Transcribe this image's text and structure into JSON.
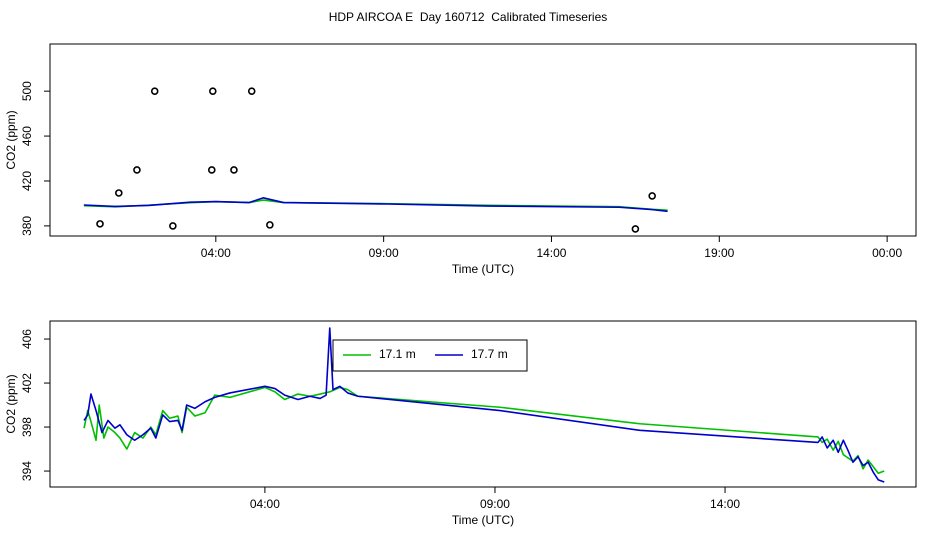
{
  "chart_data": [
    {
      "type": "line",
      "title": "HDP AIRCOA E  Day 160712  Calibrated Timeseries",
      "xlabel": "Time (UTC)",
      "ylabel": "CO2 (ppm)",
      "xlim": [
        -0.94,
        24.86
      ],
      "ylim": [
        371,
        542
      ],
      "xticks": [
        {
          "value": 4,
          "label": "04:00"
        },
        {
          "value": 9,
          "label": "09:00"
        },
        {
          "value": 14,
          "label": "14:00"
        },
        {
          "value": 19,
          "label": "19:00"
        },
        {
          "value": 24,
          "label": "00:00"
        }
      ],
      "yticks": [
        380,
        420,
        460,
        500
      ],
      "series": [
        {
          "style": "lines",
          "color": "#00c000",
          "x": [
            0.07,
            1.0,
            2.0,
            3.24,
            4.0,
            5.0,
            5.41,
            6.02,
            9.11,
            12.15,
            16.02,
            17.0,
            17.46
          ],
          "values": [
            398.0,
            397.0,
            398.5,
            400.7,
            401.6,
            400.8,
            403.0,
            400.8,
            399.8,
            398.3,
            397.1,
            394.8,
            394.0
          ]
        },
        {
          "style": "lines",
          "color": "#0000cc",
          "x": [
            0.07,
            1.0,
            2.0,
            3.24,
            4.0,
            5.0,
            5.41,
            6.02,
            9.11,
            12.15,
            16.02,
            17.0,
            17.46
          ],
          "values": [
            398.6,
            397.3,
            398.2,
            401.1,
            401.7,
            400.8,
            405.0,
            400.8,
            399.5,
            397.7,
            396.6,
            394.5,
            393.0
          ]
        },
        {
          "style": "points",
          "color": "#000000",
          "x": [
            0.55,
            1.11,
            1.65,
            2.18,
            2.72,
            3.88,
            3.91,
            4.54,
            5.07,
            5.61,
            16.5,
            17.0
          ],
          "values": [
            381.8,
            409.3,
            429.8,
            500,
            380,
            429.8,
            500,
            429.8,
            500,
            380.9,
            377.3,
            406.7
          ]
        }
      ]
    },
    {
      "type": "line",
      "xlabel": "Time (UTC)",
      "ylabel": "CO2 (ppm)",
      "xlim": [
        -0.67,
        18.15
      ],
      "ylim": [
        392.55,
        407.64
      ],
      "xticks": [
        {
          "value": 4,
          "label": "04:00"
        },
        {
          "value": 9,
          "label": "09:00"
        },
        {
          "value": 14,
          "label": "14:00"
        }
      ],
      "yticks": [
        394,
        398,
        402,
        406
      ],
      "legend": "top",
      "series": [
        {
          "name": "17.1 m",
          "style": "lines",
          "color": "#00c000",
          "x": [
            0.07,
            0.15,
            0.22,
            0.33,
            0.4,
            0.5,
            0.59,
            0.74,
            0.85,
            1.0,
            1.17,
            1.35,
            1.52,
            1.63,
            1.78,
            1.93,
            2.11,
            2.2,
            2.3,
            2.48,
            2.7,
            2.91,
            3.24,
            4.0,
            4.22,
            4.43,
            4.72,
            4.98,
            5.2,
            5.41,
            5.63,
            5.8,
            6.02,
            9.11,
            12.15,
            16.02,
            16.11,
            16.22,
            16.35,
            16.46,
            16.57,
            16.67,
            16.78,
            16.89,
            17.0,
            17.11,
            17.22,
            17.33,
            17.46
          ],
          "values": [
            397.9,
            399.5,
            398.5,
            396.8,
            400.0,
            397.0,
            398.0,
            397.5,
            397.0,
            396.0,
            397.5,
            397.0,
            398.0,
            397.3,
            399.5,
            398.8,
            399.0,
            397.5,
            399.8,
            399.0,
            399.3,
            400.9,
            400.7,
            401.6,
            401.2,
            400.5,
            401.0,
            400.8,
            401.0,
            401.2,
            401.6,
            401.4,
            400.8,
            399.8,
            398.3,
            397.1,
            396.6,
            396.9,
            395.9,
            396.7,
            395.5,
            395.2,
            394.9,
            395.4,
            394.2,
            395.0,
            394.4,
            393.8,
            394.0
          ]
        },
        {
          "name": "17.7 m",
          "style": "lines",
          "color": "#0000cc",
          "x": [
            0.07,
            0.15,
            0.22,
            0.33,
            0.46,
            0.59,
            0.74,
            0.85,
            1.0,
            1.17,
            1.35,
            1.52,
            1.63,
            1.78,
            1.93,
            2.11,
            2.2,
            2.3,
            2.48,
            2.7,
            2.91,
            3.24,
            4.0,
            4.22,
            4.43,
            4.72,
            4.98,
            5.2,
            5.33,
            5.41,
            5.48,
            5.63,
            5.8,
            6.02,
            9.11,
            12.15,
            16.02,
            16.11,
            16.22,
            16.35,
            16.46,
            16.57,
            16.67,
            16.78,
            16.89,
            17.0,
            17.11,
            17.22,
            17.33,
            17.46
          ],
          "values": [
            398.6,
            399.1,
            401.0,
            399.5,
            397.5,
            398.6,
            397.9,
            398.2,
            397.3,
            396.8,
            397.3,
            397.9,
            397.0,
            399.1,
            398.5,
            398.6,
            397.7,
            400.0,
            399.7,
            400.3,
            400.7,
            401.1,
            401.7,
            401.5,
            400.9,
            400.5,
            400.8,
            400.6,
            400.9,
            407.0,
            401.4,
            401.7,
            401.1,
            400.8,
            399.5,
            397.7,
            396.6,
            397.1,
            396.1,
            396.8,
            395.7,
            396.8,
            395.9,
            394.8,
            395.3,
            394.5,
            394.8,
            393.9,
            393.2,
            393.0
          ]
        }
      ]
    }
  ]
}
